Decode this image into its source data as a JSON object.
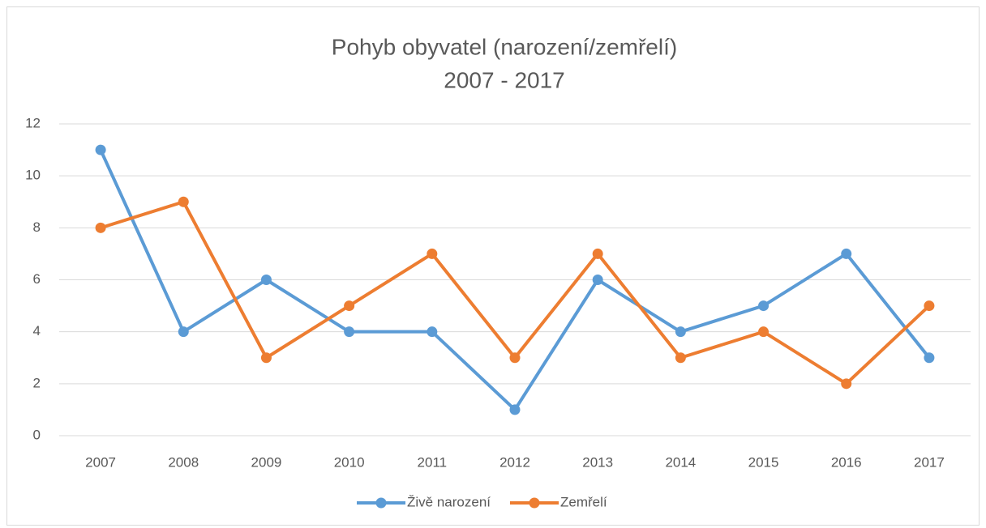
{
  "chart_data": {
    "type": "line",
    "title": "Pohyb obyvatel (narození/zemřelí)",
    "subtitle": "2007 - 2017",
    "categories": [
      "2007",
      "2008",
      "2009",
      "2010",
      "2011",
      "2012",
      "2013",
      "2014",
      "2015",
      "2016",
      "2017"
    ],
    "series": [
      {
        "name": "Živě narození",
        "color": "#5b9bd5",
        "values": [
          11,
          4,
          6,
          4,
          4,
          1,
          6,
          4,
          5,
          7,
          3
        ]
      },
      {
        "name": "Zemřelí",
        "color": "#ed7d31",
        "values": [
          8,
          9,
          3,
          5,
          7,
          3,
          7,
          3,
          4,
          2,
          5
        ]
      }
    ],
    "ylim": [
      0,
      12
    ],
    "yticks": [
      0,
      2,
      4,
      6,
      8,
      10,
      12
    ],
    "grid": true,
    "legend": "bottom"
  }
}
